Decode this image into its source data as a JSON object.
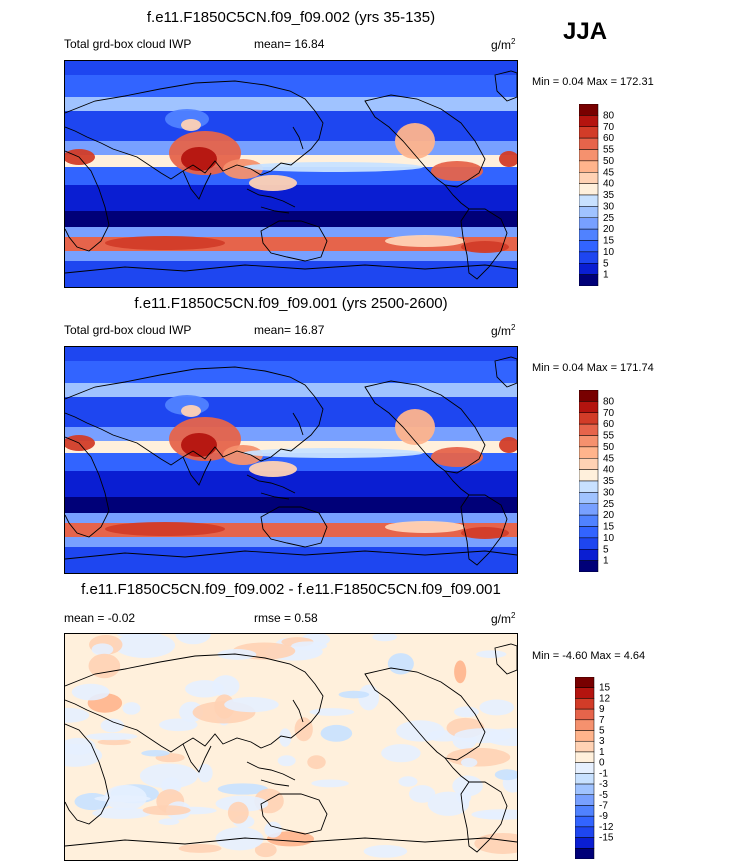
{
  "season": "JJA",
  "colors": {
    "levels_iwp": [
      "#000078",
      "#0a1ed2",
      "#1e46f0",
      "#3264ff",
      "#5082ff",
      "#78a0ff",
      "#a0c3ff",
      "#c8e1ff",
      "#fff0dc",
      "#ffd2b4",
      "#ffb48c",
      "#f5916e",
      "#e6644b",
      "#d23c28",
      "#b4140f",
      "#780000"
    ],
    "levels_diff": [
      "#000078",
      "#0a1ed2",
      "#1e46f0",
      "#3264ff",
      "#5082ff",
      "#78a0ff",
      "#a0c3ff",
      "#c8e1ff",
      "#e6f0ff",
      "#fff0dc",
      "#ffd2b4",
      "#ffb48c",
      "#f5916e",
      "#e6644b",
      "#d23c28",
      "#b4140f",
      "#780000"
    ]
  },
  "panels": [
    {
      "title": "f.e11.F1850C5CN.f09_f09.002 (yrs 35-135)",
      "left_label": "Total grd-box cloud IWP",
      "stat_label": "mean=",
      "stat_value": "16.84",
      "units_base": "g/m",
      "units_sup": "2",
      "minmax": "Min =   0.04 Max = 172.31",
      "cbar_ticks": [
        "80",
        "70",
        "60",
        "55",
        "50",
        "45",
        "40",
        "35",
        "30",
        "25",
        "20",
        "15",
        "10",
        "5",
        "1"
      ]
    },
    {
      "title": "f.e11.F1850C5CN.f09_f09.001 (yrs 2500-2600)",
      "left_label": "Total grd-box cloud IWP",
      "stat_label": "mean=",
      "stat_value": "16.87",
      "units_base": "g/m",
      "units_sup": "2",
      "minmax": "Min =   0.04 Max = 171.74",
      "cbar_ticks": [
        "80",
        "70",
        "60",
        "55",
        "50",
        "45",
        "40",
        "35",
        "30",
        "25",
        "20",
        "15",
        "10",
        "5",
        "1"
      ]
    },
    {
      "title": "f.e11.F1850C5CN.f09_f09.002 - f.e11.F1850C5CN.f09_f09.001",
      "left_label": "mean =   -0.02",
      "stat_label": "rmse =",
      "stat_value": "0.58",
      "units_base": "g/m",
      "units_sup": "2",
      "minmax": "Min =  -4.60 Max =   4.64",
      "cbar_ticks": [
        "15",
        "12",
        "9",
        "7",
        "5",
        "3",
        "1",
        "0",
        "-1",
        "-3",
        "-5",
        "-7",
        "-9",
        "-12",
        "-15"
      ]
    }
  ],
  "chart_data": [
    {
      "type": "heatmap",
      "title": "f.e11.F1850C5CN.f09_f09.002 (yrs 35-135)",
      "variable": "Total grd-box cloud IWP",
      "units": "g/m2",
      "mean": 16.84,
      "min": 0.04,
      "max": 172.31,
      "contour_levels": [
        1,
        5,
        10,
        15,
        20,
        25,
        30,
        35,
        40,
        45,
        50,
        55,
        60,
        70,
        80
      ]
    },
    {
      "type": "heatmap",
      "title": "f.e11.F1850C5CN.f09_f09.001 (yrs 2500-2600)",
      "variable": "Total grd-box cloud IWP",
      "units": "g/m2",
      "mean": 16.87,
      "min": 0.04,
      "max": 171.74,
      "contour_levels": [
        1,
        5,
        10,
        15,
        20,
        25,
        30,
        35,
        40,
        45,
        50,
        55,
        60,
        70,
        80
      ]
    },
    {
      "type": "heatmap",
      "title": "f.e11.F1850C5CN.f09_f09.002 - f.e11.F1850C5CN.f09_f09.001",
      "units": "g/m2",
      "mean": -0.02,
      "rmse": 0.58,
      "min": -4.6,
      "max": 4.64,
      "contour_levels": [
        -15,
        -12,
        -9,
        -7,
        -5,
        -3,
        -1,
        0,
        1,
        3,
        5,
        7,
        9,
        12,
        15
      ]
    }
  ]
}
